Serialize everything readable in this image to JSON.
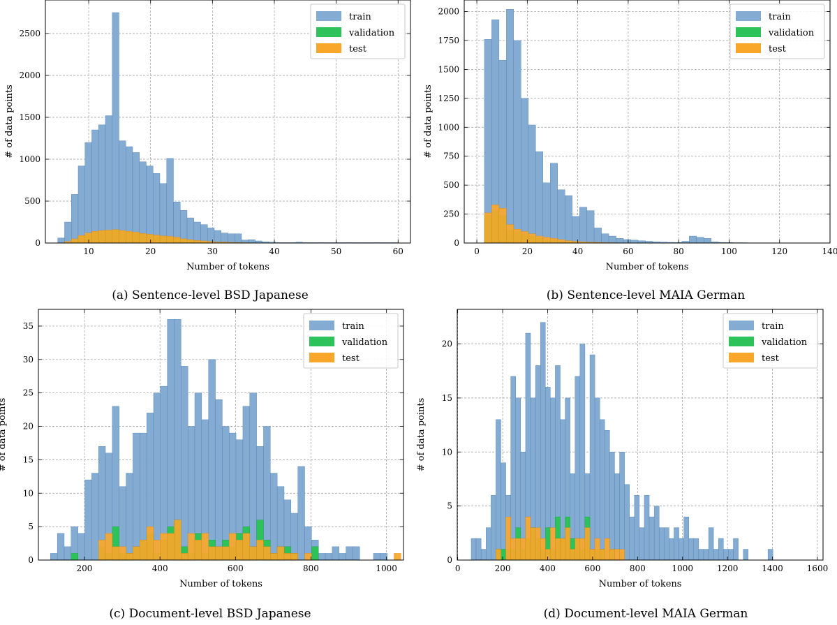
{
  "legend_colors": {
    "train": "#84acd3",
    "validation": "#2ec35a",
    "test": "#f9a72b"
  },
  "chart_data": [
    {
      "type": "bar",
      "subplot": "a",
      "caption": "(a) Sentence-level BSD Japanese",
      "xlabel": "Number of tokens",
      "ylabel": "# of data points",
      "xlim": [
        3,
        62
      ],
      "ylim": [
        0,
        2900
      ],
      "xticks": [
        10,
        20,
        30,
        40,
        50,
        60
      ],
      "yticks": [
        0,
        500,
        1000,
        1500,
        2000,
        2500
      ],
      "grid": true,
      "legend_position": "top-right",
      "bin_start": 5,
      "bin_width": 1.1,
      "series": [
        {
          "name": "train",
          "values": [
            60,
            250,
            580,
            920,
            1200,
            1350,
            1410,
            1520,
            2750,
            1220,
            1150,
            1080,
            970,
            920,
            830,
            710,
            1010,
            490,
            390,
            300,
            250,
            220,
            180,
            150,
            120,
            110,
            110,
            35,
            40,
            25,
            15,
            10,
            5,
            5,
            5,
            10,
            5,
            5,
            5,
            5,
            5,
            5,
            5,
            5,
            5,
            5,
            5,
            5,
            5,
            5
          ]
        },
        {
          "name": "validation",
          "values": [
            2,
            15,
            40,
            80,
            110,
            130,
            145,
            150,
            155,
            140,
            130,
            120,
            110,
            100,
            90,
            80,
            75,
            60,
            45,
            35,
            25,
            20,
            15,
            10,
            8,
            6,
            5,
            3,
            3,
            2,
            2,
            1,
            1,
            1,
            1,
            0,
            0,
            0,
            0,
            0,
            0,
            0,
            0,
            0,
            0,
            0,
            0,
            0,
            0,
            0
          ]
        },
        {
          "name": "test",
          "values": [
            2,
            20,
            50,
            90,
            120,
            140,
            150,
            155,
            160,
            150,
            140,
            130,
            115,
            105,
            95,
            85,
            80,
            70,
            50,
            40,
            30,
            25,
            18,
            12,
            10,
            8,
            6,
            4,
            3,
            2,
            2,
            1,
            1,
            1,
            1,
            0,
            0,
            0,
            0,
            0,
            0,
            0,
            0,
            0,
            0,
            0,
            0,
            0,
            0,
            0
          ]
        }
      ]
    },
    {
      "type": "bar",
      "subplot": "b",
      "caption": "(b) Sentence-level MAIA German",
      "xlabel": "Number of tokens",
      "ylabel": "# of data points",
      "xlim": [
        -5,
        140
      ],
      "ylim": [
        0,
        2100
      ],
      "xticks": [
        0,
        20,
        40,
        60,
        80,
        100,
        120,
        140
      ],
      "yticks": [
        0,
        250,
        500,
        750,
        1000,
        1250,
        1500,
        1750,
        2000
      ],
      "grid": true,
      "legend_position": "top-right",
      "bin_start": 3,
      "bin_width": 2.9,
      "series": [
        {
          "name": "train",
          "values": [
            1760,
            1930,
            1580,
            2020,
            1750,
            1250,
            1020,
            790,
            520,
            690,
            460,
            410,
            230,
            310,
            280,
            130,
            80,
            60,
            40,
            30,
            25,
            20,
            15,
            10,
            8,
            6,
            5,
            15,
            60,
            50,
            40,
            10,
            5,
            5,
            3,
            3,
            2,
            2,
            2,
            2
          ]
        },
        {
          "name": "validation",
          "values": [
            240,
            280,
            240,
            110,
            100,
            80,
            60,
            40,
            25,
            20,
            15,
            10,
            8,
            5,
            4,
            3,
            2,
            2,
            1,
            1,
            0,
            0,
            0,
            0,
            0,
            0,
            0,
            0,
            0,
            0,
            0,
            0,
            0,
            0,
            0,
            0,
            0,
            0,
            0,
            0
          ]
        },
        {
          "name": "test",
          "values": [
            260,
            330,
            300,
            160,
            120,
            100,
            80,
            60,
            50,
            40,
            30,
            20,
            15,
            10,
            8,
            6,
            4,
            3,
            2,
            2,
            1,
            1,
            0,
            0,
            0,
            0,
            0,
            0,
            0,
            0,
            0,
            0,
            0,
            0,
            0,
            0,
            0,
            0,
            0,
            0
          ]
        }
      ]
    },
    {
      "type": "bar",
      "subplot": "c",
      "caption": "(c) Document-level BSD Japanese",
      "xlabel": "Number of tokens",
      "ylabel": "# of data points",
      "xlim": [
        78,
        1045
      ],
      "ylim": [
        0,
        37.5
      ],
      "xticks": [
        200,
        400,
        600,
        800,
        1000
      ],
      "yticks": [
        0,
        5,
        10,
        15,
        20,
        25,
        30,
        35
      ],
      "grid": true,
      "legend_position": "top-right",
      "bin_start": 110,
      "bin_width": 18.2,
      "series": [
        {
          "name": "train",
          "values": [
            1,
            4,
            2,
            5,
            4,
            12,
            13,
            17,
            16,
            23,
            11,
            13,
            19,
            19,
            22,
            25,
            26,
            36,
            36,
            29,
            20,
            25,
            21,
            30,
            24,
            20,
            19,
            18,
            23,
            25,
            17,
            20,
            13,
            11,
            9,
            7,
            14,
            5,
            3,
            1,
            1,
            2,
            1,
            2,
            2,
            0,
            0,
            1,
            1,
            0,
            0
          ]
        },
        {
          "name": "validation",
          "values": [
            0,
            0,
            0,
            1,
            0,
            0,
            0,
            2,
            1,
            5,
            1,
            1,
            2,
            3,
            4,
            1,
            3,
            5,
            6,
            2,
            1,
            4,
            1,
            3,
            2,
            3,
            2,
            4,
            5,
            2,
            6,
            3,
            1,
            2,
            2,
            1,
            0,
            0,
            2,
            0,
            0,
            0,
            0,
            0,
            0,
            0,
            0,
            0,
            0,
            0,
            0
          ]
        },
        {
          "name": "test",
          "values": [
            0,
            0,
            0,
            0,
            0,
            0,
            0,
            3,
            4,
            2,
            2,
            1,
            2,
            3,
            5,
            3,
            4,
            4,
            6,
            1,
            4,
            3,
            4,
            2,
            2,
            2,
            4,
            3,
            4,
            2,
            3,
            2,
            1,
            2,
            1,
            1,
            0,
            1,
            0,
            0,
            0,
            0,
            0,
            0,
            0,
            0,
            0,
            0,
            0,
            0,
            1
          ]
        }
      ]
    },
    {
      "type": "bar",
      "subplot": "d",
      "caption": "(d) Document-level MAIA German",
      "xlabel": "Number of tokens",
      "ylabel": "# of data points",
      "xlim": [
        -2,
        1625
      ],
      "ylim": [
        0,
        23.2
      ],
      "xticks": [
        0,
        200,
        400,
        600,
        800,
        1000,
        1200,
        1400,
        1600
      ],
      "yticks": [
        0,
        5,
        10,
        15,
        20
      ],
      "grid": true,
      "legend_position": "top-right",
      "bin_start": 60,
      "bin_width": 22,
      "series": [
        {
          "name": "train",
          "values": [
            2,
            2,
            1,
            3,
            6,
            13,
            9,
            6,
            17,
            15,
            10,
            21,
            15,
            18,
            22,
            16,
            15,
            18,
            13,
            15,
            8,
            17,
            20,
            8,
            19,
            15,
            13,
            12,
            10,
            8,
            10,
            7,
            4,
            6,
            3,
            6,
            4,
            5,
            3,
            3,
            2,
            3,
            2,
            4,
            2,
            2,
            1,
            1,
            3,
            1,
            2,
            1,
            1,
            2,
            0,
            1,
            0,
            0,
            0,
            0,
            1
          ]
        },
        {
          "name": "validation",
          "values": [
            0,
            0,
            0,
            0,
            0,
            1,
            1,
            1,
            1,
            3,
            1,
            2,
            3,
            2,
            1,
            3,
            1,
            4,
            2,
            4,
            2,
            2,
            1,
            4,
            1,
            1,
            1,
            0,
            1,
            0,
            0,
            0,
            0,
            0,
            0,
            0,
            0,
            0,
            0,
            0,
            0,
            0,
            0,
            0,
            0,
            0,
            0,
            0,
            0,
            0,
            0,
            0,
            0,
            0,
            0,
            0,
            0,
            0,
            0,
            0,
            0
          ]
        },
        {
          "name": "test",
          "values": [
            0,
            0,
            0,
            0,
            0,
            1,
            0,
            4,
            2,
            2,
            2,
            4,
            3,
            3,
            2,
            1,
            3,
            2,
            2,
            3,
            1,
            2,
            2,
            3,
            1,
            2,
            1,
            2,
            1,
            1,
            1,
            0,
            0,
            0,
            0,
            0,
            0,
            0,
            0,
            0,
            0,
            0,
            0,
            0,
            0,
            0,
            0,
            0,
            0,
            0,
            0,
            0,
            0,
            0,
            0,
            0,
            0,
            0,
            0,
            0,
            0
          ]
        }
      ]
    }
  ]
}
